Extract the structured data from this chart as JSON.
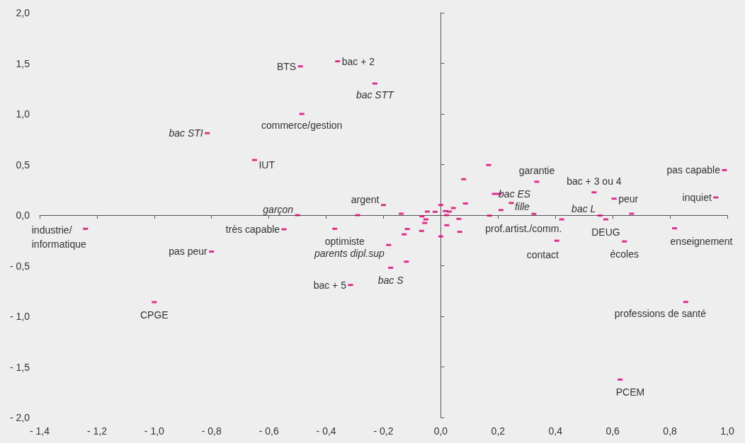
{
  "chart_data": {
    "type": "scatter",
    "marker": "square",
    "xlim": [
      -1.4,
      1.0
    ],
    "xticks": [
      {
        "value": -1.4,
        "label": "- 1,4"
      },
      {
        "value": -1.2,
        "label": "- 1,2"
      },
      {
        "value": -1.0,
        "label": "- 1,0"
      },
      {
        "value": -0.8,
        "label": "- 0,8"
      },
      {
        "value": -0.6,
        "label": "- 0,6"
      },
      {
        "value": -0.4,
        "label": "- 0,4"
      },
      {
        "value": -0.2,
        "label": "- 0,2"
      },
      {
        "value": 0,
        "label": "0,0"
      },
      {
        "value": 0.2,
        "label": "0,2"
      },
      {
        "value": 0.4,
        "label": "0,4"
      },
      {
        "value": 0.6,
        "label": "0,6"
      },
      {
        "value": 0.8,
        "label": "0,8"
      },
      {
        "value": 1.0,
        "label": "1,0"
      }
    ],
    "ylim": [
      -2.0,
      2.0
    ],
    "yticks": [
      {
        "value": -2.0,
        "label": "- 2,0"
      },
      {
        "value": -1.5,
        "label": "- 1,5"
      },
      {
        "value": -1.0,
        "label": "- 1,0"
      },
      {
        "value": -0.5,
        "label": "- 0,5"
      },
      {
        "value": 0,
        "label": "0,0"
      },
      {
        "value": 0.5,
        "label": "0,5"
      },
      {
        "value": 1.0,
        "label": "1,0"
      },
      {
        "value": 1.5,
        "label": "1,5"
      },
      {
        "value": 2.0,
        "label": "2,0"
      }
    ],
    "series": [
      {
        "color": "#d4006e",
        "x": [
          -0.36,
          -0.49,
          -0.485,
          -0.65,
          -0.2,
          -0.29,
          -1.24,
          -0.547,
          -0.37,
          -0.8,
          -1.0,
          -0.315,
          -0.12,
          0.167,
          0.08,
          0.335,
          0.204,
          0.246,
          0.086,
          0.0,
          0.044,
          0.21,
          0.016,
          0.03,
          -0.047,
          -0.02,
          -0.138,
          0.17,
          0.02,
          -0.066,
          -0.052,
          0.063,
          -0.056,
          -0.117,
          0.021,
          -0.067,
          0.066,
          -0.128,
          0.0,
          0.99,
          0.96,
          0.535,
          0.605,
          0.666,
          0.576,
          0.422,
          0.405,
          0.641,
          0.816,
          0.855,
          0.626,
          -0.23,
          -0.815,
          -0.5,
          0.187,
          0.325,
          0.556,
          -0.182,
          -0.175
        ],
        "values": [
          1.52,
          1.47,
          1.0,
          0.545,
          0.1,
          0.0,
          -0.135,
          -0.14,
          -0.135,
          -0.36,
          -0.86,
          -0.69,
          -0.46,
          0.495,
          0.355,
          0.33,
          0.21,
          0.12,
          0.115,
          0.1,
          0.07,
          0.05,
          0.04,
          0.035,
          0.035,
          0.033,
          0.014,
          -0.005,
          0.0,
          -0.012,
          -0.042,
          -0.037,
          -0.077,
          -0.137,
          -0.1,
          -0.156,
          -0.165,
          -0.19,
          -0.21,
          0.445,
          0.175,
          0.225,
          0.163,
          0.014,
          -0.042,
          -0.042,
          -0.253,
          -0.26,
          -0.13,
          -0.858,
          -1.625,
          1.3,
          0.81,
          0.0,
          0.21,
          0.012,
          -0.004,
          -0.295,
          -0.52
        ]
      }
    ],
    "annotations": [
      {
        "text": "bac + 2",
        "x": -0.36,
        "y": 1.52
      },
      {
        "text": "BTS",
        "x": -0.49,
        "y": 1.47
      },
      {
        "text": "commerce/gestion",
        "x": -0.485,
        "y": 1.0
      },
      {
        "text": "IUT",
        "x": -0.65,
        "y": 0.545
      },
      {
        "text": "argent",
        "x": -0.2,
        "y": 0.1
      },
      {
        "text": "industrie/\ninformatique",
        "x": -1.24,
        "y": -0.135
      },
      {
        "text": "très capable",
        "x": -0.547,
        "y": -0.14
      },
      {
        "text": "optimiste",
        "x": -0.37,
        "y": -0.135
      },
      {
        "text": "pas peur",
        "x": -0.8,
        "y": -0.36
      },
      {
        "text": "CPGE",
        "x": -1.0,
        "y": -0.86
      },
      {
        "text": "bac + 5",
        "x": -0.315,
        "y": -0.69
      },
      {
        "text": "garantie",
        "x": 0.335,
        "y": 0.33
      },
      {
        "text": "prof.artist./comm.",
        "x": 0.17,
        "y": -0.005
      },
      {
        "text": "pas capable",
        "x": 0.99,
        "y": 0.445
      },
      {
        "text": "inquiet",
        "x": 0.96,
        "y": 0.175
      },
      {
        "text": "bac + 3 ou 4",
        "x": 0.535,
        "y": 0.225
      },
      {
        "text": "peur",
        "x": 0.605,
        "y": 0.163
      },
      {
        "text": "DEUG",
        "x": 0.576,
        "y": -0.042
      },
      {
        "text": "contact",
        "x": 0.405,
        "y": -0.253
      },
      {
        "text": "écoles",
        "x": 0.641,
        "y": -0.26
      },
      {
        "text": "enseignement",
        "x": 0.816,
        "y": -0.13
      },
      {
        "text": "professions de santé",
        "x": 0.855,
        "y": -0.858
      },
      {
        "text": "PCEM",
        "x": 0.626,
        "y": -1.625
      },
      {
        "text": "bac STT",
        "x": -0.23,
        "y": 1.3
      },
      {
        "text": "bac STI",
        "x": -0.815,
        "y": 0.81
      },
      {
        "text": "garçon",
        "x": -0.5,
        "y": 0.0
      },
      {
        "text": "bac ES",
        "x": 0.187,
        "y": 0.21
      },
      {
        "text": "fille",
        "x": 0.325,
        "y": 0.012
      },
      {
        "text": "bac L",
        "x": 0.556,
        "y": -0.004
      },
      {
        "text": "parents dipl.sup",
        "x": -0.182,
        "y": -0.295
      },
      {
        "text": "bac S",
        "x": -0.175,
        "y": -0.52
      }
    ]
  }
}
